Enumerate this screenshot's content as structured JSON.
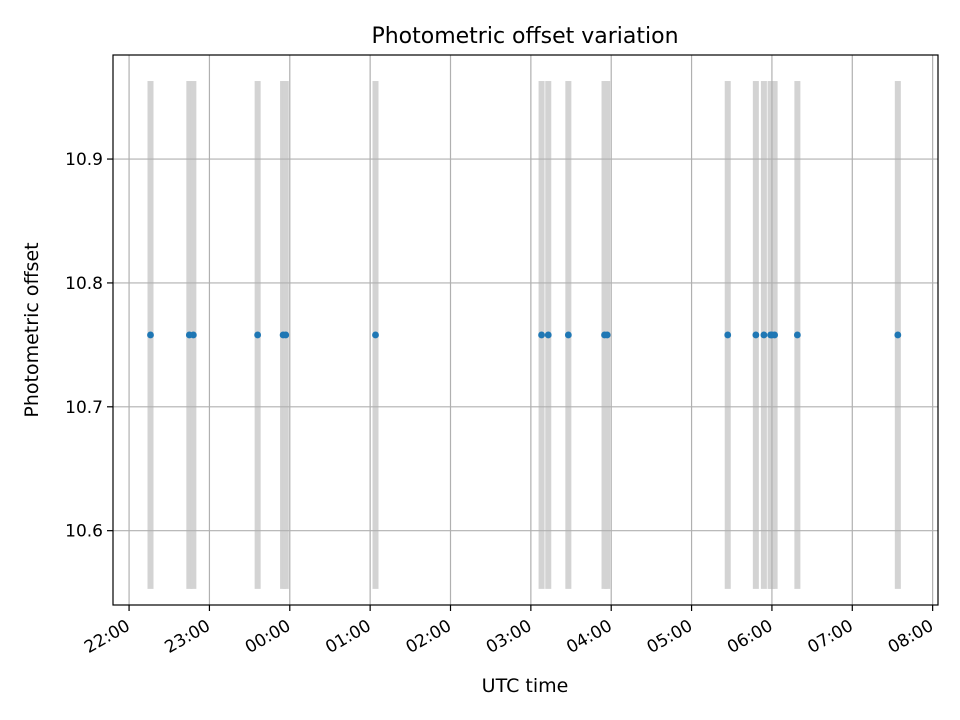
{
  "chart_data": {
    "type": "scatter",
    "title": "Photometric offset variation",
    "xlabel": "UTC time",
    "ylabel": "Photometric offset",
    "x_axis_type": "time",
    "xlim": [
      "21:48",
      "08:04"
    ],
    "ylim": [
      10.54,
      10.984
    ],
    "grid": true,
    "x_ticks": [
      "22:00",
      "23:00",
      "00:00",
      "01:00",
      "02:00",
      "03:00",
      "04:00",
      "05:00",
      "06:00",
      "07:00",
      "08:00"
    ],
    "y_ticks": [
      10.6,
      10.7,
      10.8,
      10.9
    ],
    "band_range": [
      10.553,
      10.963
    ],
    "band_color": "#d3d3d3",
    "point_color": "#1f77b4",
    "x": [
      "22:16",
      "22:45",
      "22:48",
      "23:36",
      "23:55",
      "23:57",
      "01:04",
      "03:08",
      "03:13",
      "03:28",
      "03:55",
      "03:57",
      "05:27",
      "05:48",
      "05:54",
      "05:59",
      "06:00",
      "06:02",
      "06:19",
      "07:34"
    ],
    "y": [
      10.758,
      10.758,
      10.758,
      10.758,
      10.758,
      10.758,
      10.758,
      10.758,
      10.758,
      10.758,
      10.758,
      10.758,
      10.758,
      10.758,
      10.758,
      10.758,
      10.758,
      10.758,
      10.758,
      10.758
    ]
  }
}
